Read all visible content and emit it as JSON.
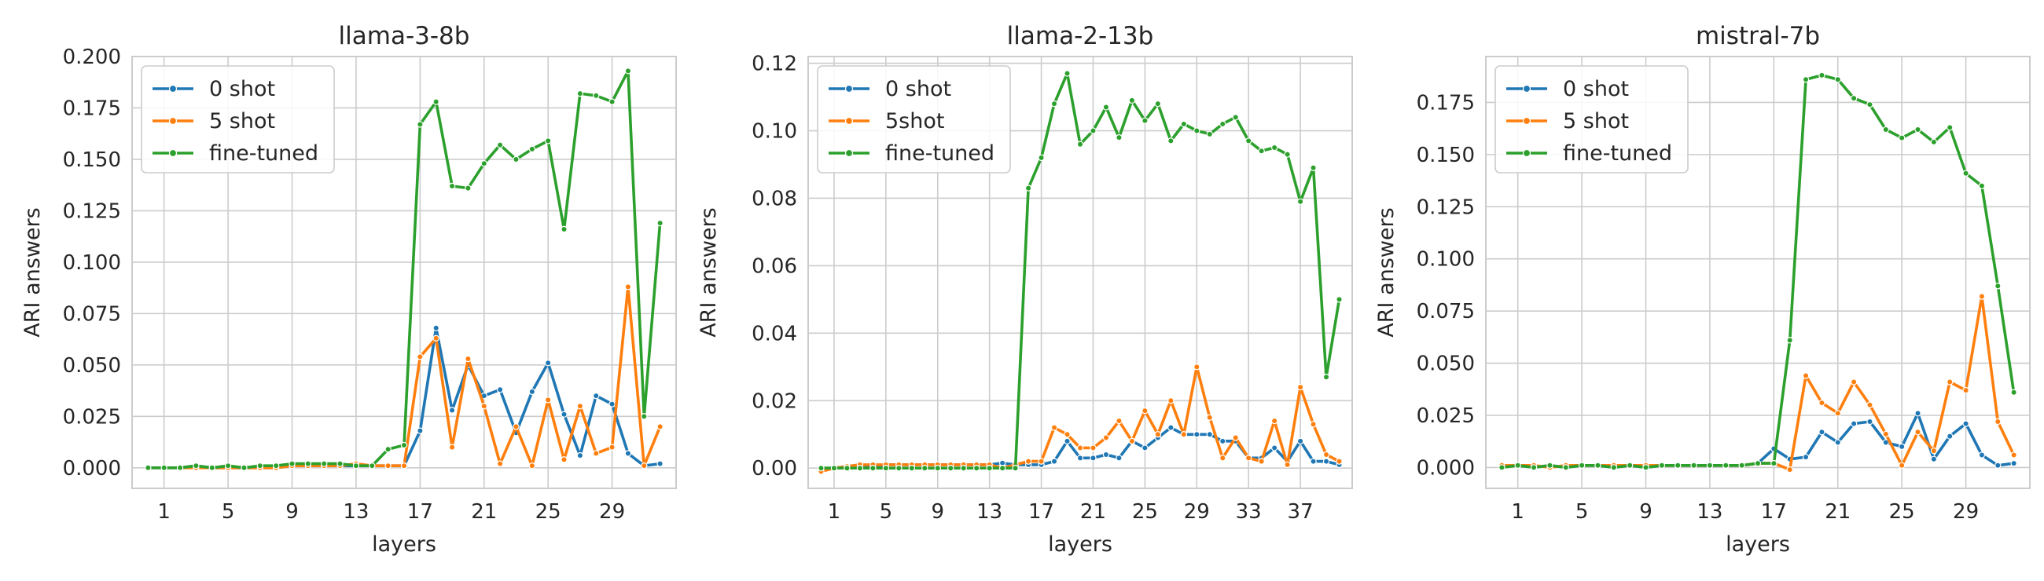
{
  "chart_data": [
    {
      "type": "line",
      "title": "llama-3-8b",
      "xlabel": "layers",
      "ylabel": "ARI answers",
      "xlim": [
        -1,
        33
      ],
      "ylim": [
        -0.01,
        0.2
      ],
      "xticks": [
        1,
        5,
        9,
        13,
        17,
        21,
        25,
        29
      ],
      "yticks": [
        0.0,
        0.025,
        0.05,
        0.075,
        0.1,
        0.125,
        0.15,
        0.175,
        0.2
      ],
      "ytick_labels": [
        "0.000",
        "0.025",
        "0.050",
        "0.075",
        "0.100",
        "0.125",
        "0.150",
        "0.175",
        "0.200"
      ],
      "grid": true,
      "legend_position": "top-left",
      "x": [
        0,
        1,
        2,
        3,
        4,
        5,
        6,
        7,
        8,
        9,
        10,
        11,
        12,
        13,
        14,
        15,
        16,
        17,
        18,
        19,
        20,
        21,
        22,
        23,
        24,
        25,
        26,
        27,
        28,
        29,
        30,
        31,
        32
      ],
      "series": [
        {
          "name": "0 shot",
          "color": "#1f77b4",
          "values": [
            0.0,
            0.0,
            0.0,
            0.001,
            0.0,
            0.0,
            0.0,
            0.0,
            0.0,
            0.001,
            0.001,
            0.001,
            0.001,
            0.001,
            0.001,
            0.001,
            0.001,
            0.018,
            0.068,
            0.028,
            0.05,
            0.035,
            0.038,
            0.017,
            0.037,
            0.051,
            0.026,
            0.006,
            0.035,
            0.031,
            0.007,
            0.001,
            0.002
          ]
        },
        {
          "name": "5 shot",
          "color": "#ff7f0e",
          "values": [
            0.0,
            0.0,
            0.0,
            0.0,
            0.0,
            0.0,
            0.0,
            0.0,
            0.0,
            0.001,
            0.001,
            0.001,
            0.001,
            0.002,
            0.001,
            0.001,
            0.001,
            0.054,
            0.063,
            0.01,
            0.053,
            0.03,
            0.002,
            0.02,
            0.001,
            0.033,
            0.004,
            0.03,
            0.007,
            0.01,
            0.088,
            0.001,
            0.02
          ]
        },
        {
          "name": "fine-tuned",
          "color": "#2ca02c",
          "values": [
            0.0,
            0.0,
            0.0,
            0.001,
            0.0,
            0.001,
            0.0,
            0.001,
            0.001,
            0.002,
            0.002,
            0.002,
            0.002,
            0.001,
            0.001,
            0.009,
            0.011,
            0.167,
            0.178,
            0.137,
            0.136,
            0.148,
            0.157,
            0.15,
            0.155,
            0.159,
            0.116,
            0.182,
            0.181,
            0.178,
            0.193,
            0.025,
            0.119
          ]
        }
      ]
    },
    {
      "type": "line",
      "title": "llama-2-13b",
      "xlabel": "layers",
      "ylabel": "ARI answers",
      "xlim": [
        -1,
        41
      ],
      "ylim": [
        -0.006,
        0.122
      ],
      "xticks": [
        1,
        5,
        9,
        13,
        17,
        21,
        25,
        29,
        33,
        37
      ],
      "yticks": [
        0.0,
        0.02,
        0.04,
        0.06,
        0.08,
        0.1,
        0.12
      ],
      "ytick_labels": [
        "0.00",
        "0.02",
        "0.04",
        "0.06",
        "0.08",
        "0.10",
        "0.12"
      ],
      "grid": true,
      "legend_position": "top-left",
      "x": [
        0,
        1,
        2,
        3,
        4,
        5,
        6,
        7,
        8,
        9,
        10,
        11,
        12,
        13,
        14,
        15,
        16,
        17,
        18,
        19,
        20,
        21,
        22,
        23,
        24,
        25,
        26,
        27,
        28,
        29,
        30,
        31,
        32,
        33,
        34,
        35,
        36,
        37,
        38,
        39,
        40
      ],
      "series": [
        {
          "name": "0 shot",
          "color": "#1f77b4",
          "values": [
            0.0,
            0.0,
            0.0005,
            0.001,
            0.0005,
            0.001,
            0.001,
            0.001,
            0.001,
            0.001,
            0.001,
            0.001,
            0.001,
            0.001,
            0.0015,
            0.001,
            0.001,
            0.001,
            0.002,
            0.008,
            0.003,
            0.003,
            0.004,
            0.003,
            0.008,
            0.006,
            0.009,
            0.012,
            0.01,
            0.01,
            0.01,
            0.008,
            0.008,
            0.003,
            0.003,
            0.006,
            0.002,
            0.008,
            0.002,
            0.002,
            0.001
          ]
        },
        {
          "name": "5shot",
          "color": "#ff7f0e",
          "values": [
            -0.001,
            0.0,
            0.0005,
            0.001,
            0.001,
            0.001,
            0.001,
            0.001,
            0.001,
            0.001,
            0.001,
            0.001,
            0.001,
            0.001,
            0.0,
            0.001,
            0.002,
            0.002,
            0.012,
            0.01,
            0.006,
            0.006,
            0.009,
            0.014,
            0.008,
            0.017,
            0.01,
            0.02,
            0.01,
            0.03,
            0.015,
            0.003,
            0.009,
            0.003,
            0.002,
            0.014,
            0.001,
            0.024,
            0.013,
            0.004,
            0.002
          ]
        },
        {
          "name": "fine-tuned",
          "color": "#2ca02c",
          "values": [
            0.0,
            0.0,
            0.0,
            0.0,
            0.0,
            0.0,
            0.0,
            0.0,
            0.0,
            0.0,
            0.0,
            0.0,
            0.0,
            0.0,
            0.0,
            0.0,
            0.083,
            0.092,
            0.108,
            0.117,
            0.096,
            0.1,
            0.107,
            0.098,
            0.109,
            0.103,
            0.108,
            0.097,
            0.102,
            0.1,
            0.099,
            0.102,
            0.104,
            0.097,
            0.094,
            0.095,
            0.093,
            0.079,
            0.089,
            0.027,
            0.05
          ]
        }
      ]
    },
    {
      "type": "line",
      "title": "mistral-7b",
      "xlabel": "layers",
      "ylabel": "ARI answers",
      "xlim": [
        -1,
        33
      ],
      "ylim": [
        -0.01,
        0.197
      ],
      "xticks": [
        1,
        5,
        9,
        13,
        17,
        21,
        25,
        29
      ],
      "yticks": [
        0.0,
        0.025,
        0.05,
        0.075,
        0.1,
        0.125,
        0.15,
        0.175
      ],
      "ytick_labels": [
        "0.000",
        "0.025",
        "0.050",
        "0.075",
        "0.100",
        "0.125",
        "0.150",
        "0.175"
      ],
      "grid": true,
      "legend_position": "top-left",
      "x": [
        0,
        1,
        2,
        3,
        4,
        5,
        6,
        7,
        8,
        9,
        10,
        11,
        12,
        13,
        14,
        15,
        16,
        17,
        18,
        19,
        20,
        21,
        22,
        23,
        24,
        25,
        26,
        27,
        28,
        29,
        30,
        31,
        32
      ],
      "series": [
        {
          "name": "0 shot",
          "color": "#1f77b4",
          "values": [
            0.001,
            0.001,
            0.0,
            0.001,
            0.0,
            0.001,
            0.001,
            0.0,
            0.001,
            0.0,
            0.001,
            0.001,
            0.001,
            0.001,
            0.001,
            0.001,
            0.002,
            0.009,
            0.004,
            0.005,
            0.017,
            0.012,
            0.021,
            0.022,
            0.012,
            0.01,
            0.026,
            0.004,
            0.015,
            0.021,
            0.006,
            0.001,
            0.002
          ]
        },
        {
          "name": "5 shot",
          "color": "#ff7f0e",
          "values": [
            0.001,
            0.001,
            0.001,
            0.0,
            0.001,
            0.001,
            0.001,
            0.001,
            0.001,
            0.001,
            0.001,
            0.001,
            0.001,
            0.001,
            0.001,
            0.001,
            0.002,
            0.002,
            -0.001,
            0.044,
            0.031,
            0.026,
            0.041,
            0.03,
            0.016,
            0.001,
            0.017,
            0.008,
            0.041,
            0.037,
            0.082,
            0.022,
            0.006
          ]
        },
        {
          "name": "fine-tuned",
          "color": "#2ca02c",
          "values": [
            0.0,
            0.001,
            0.0,
            0.001,
            0.0,
            0.001,
            0.001,
            0.0,
            0.001,
            0.0,
            0.001,
            0.001,
            0.001,
            0.001,
            0.001,
            0.001,
            0.002,
            0.002,
            0.061,
            0.186,
            0.188,
            0.186,
            0.177,
            0.174,
            0.162,
            0.158,
            0.162,
            0.156,
            0.163,
            0.141,
            0.135,
            0.087,
            0.036
          ]
        }
      ]
    }
  ]
}
